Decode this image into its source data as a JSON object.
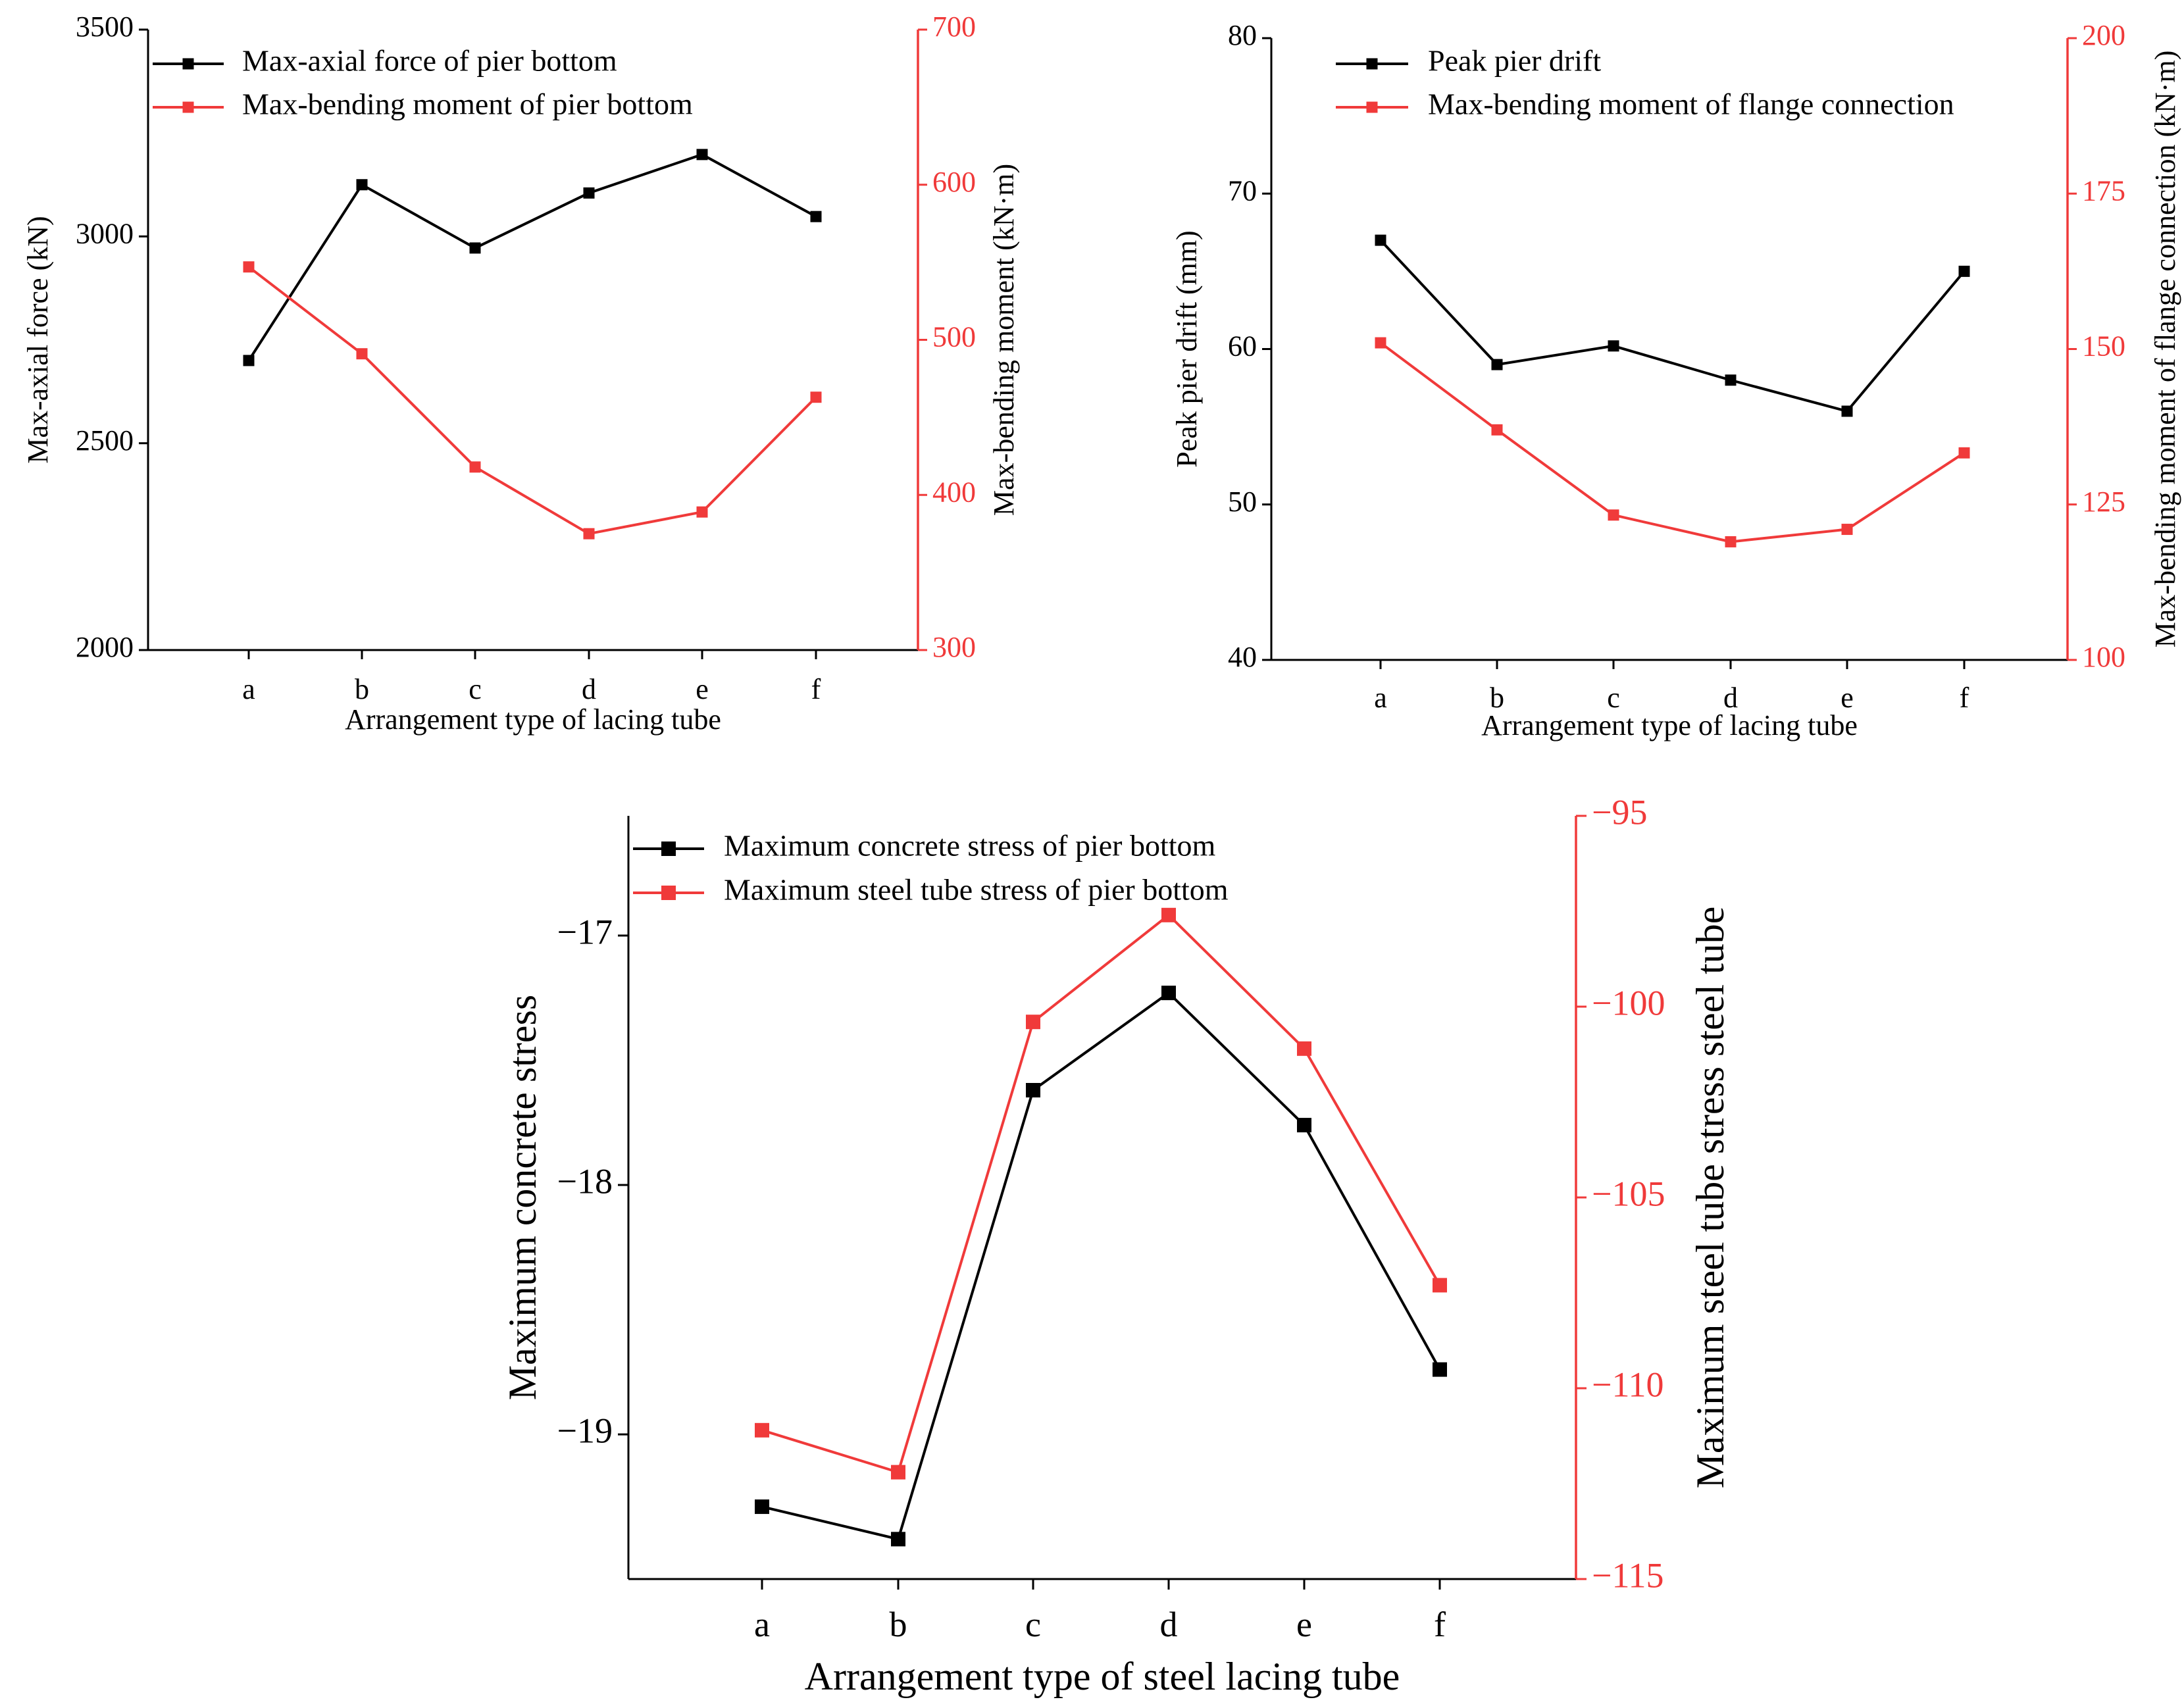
{
  "colors": {
    "black": "#000000",
    "red": "#f03a3a"
  },
  "chart_data": [
    {
      "type": "line",
      "categories": [
        "a",
        "b",
        "c",
        "d",
        "e",
        "f"
      ],
      "xlabel": "Arrangement type of lacing tube",
      "y_left": {
        "label": "Max-axial force (kN)",
        "lim": [
          2000,
          3500
        ],
        "ticks": [
          "2000",
          "2500",
          "3000",
          "3500"
        ]
      },
      "y_right": {
        "label": "Max-bending moment (kN·m)",
        "lim": [
          300,
          700
        ],
        "ticks": [
          "300",
          "400",
          "500",
          "600",
          "700"
        ]
      },
      "series": [
        {
          "name": "Max-axial force of pier bottom",
          "axis": "left",
          "color": "#000000",
          "values": [
            2700,
            3125,
            2972,
            3105,
            3198,
            3048
          ]
        },
        {
          "name": "Max-bending moment of pier bottom",
          "axis": "right",
          "color": "#f03a3a",
          "values": [
            547,
            491,
            418,
            375,
            389,
            463
          ]
        }
      ],
      "legend": "top-left",
      "grid": false
    },
    {
      "type": "line",
      "categories": [
        "a",
        "b",
        "c",
        "d",
        "e",
        "f"
      ],
      "xlabel": "Arrangement type of lacing tube",
      "y_left": {
        "label": "Peak pier drift (mm)",
        "lim": [
          40,
          80
        ],
        "ticks": [
          "40",
          "50",
          "60",
          "70",
          "80"
        ]
      },
      "y_right": {
        "label": "Max-bending moment of flange connection (kN·m)",
        "lim": [
          100,
          200
        ],
        "ticks": [
          "100",
          "125",
          "150",
          "175",
          "200"
        ]
      },
      "series": [
        {
          "name": "Peak pier drift",
          "axis": "left",
          "color": "#000000",
          "values": [
            67.0,
            59.0,
            60.2,
            58.0,
            56.0,
            65.0
          ]
        },
        {
          "name": "Max-bending moment of flange connection",
          "axis": "right",
          "color": "#f03a3a",
          "values": [
            151.0,
            137.0,
            123.3,
            119.0,
            121.0,
            133.3
          ]
        }
      ],
      "legend": "top-left",
      "grid": false
    },
    {
      "type": "line",
      "categories": [
        "a",
        "b",
        "c",
        "d",
        "e",
        "f"
      ],
      "xlabel": "Arrangement type of steel lacing tube",
      "y_left": {
        "label": "Maximum concrete stress",
        "lim": [
          -19.58,
          -16.52
        ],
        "ticks": [
          "−19",
          "−18",
          "−17"
        ]
      },
      "y_right": {
        "label": "Maximum steel tube stress steel tube",
        "lim": [
          -115,
          -95
        ],
        "ticks": [
          "−115",
          "−110",
          "−105",
          "−100",
          "−95"
        ]
      },
      "series": [
        {
          "name": "Maximum concrete stress of pier bottom",
          "axis": "left",
          "color": "#000000",
          "values": [
            -19.29,
            -19.42,
            -17.62,
            -17.23,
            -17.76,
            -18.74
          ]
        },
        {
          "name": "Maximum steel tube stress of pier bottom",
          "axis": "right",
          "color": "#f03a3a",
          "values": [
            -111.1,
            -112.2,
            -100.4,
            -97.6,
            -101.1,
            -107.3
          ]
        }
      ],
      "legend": "top-left",
      "grid": false
    }
  ]
}
